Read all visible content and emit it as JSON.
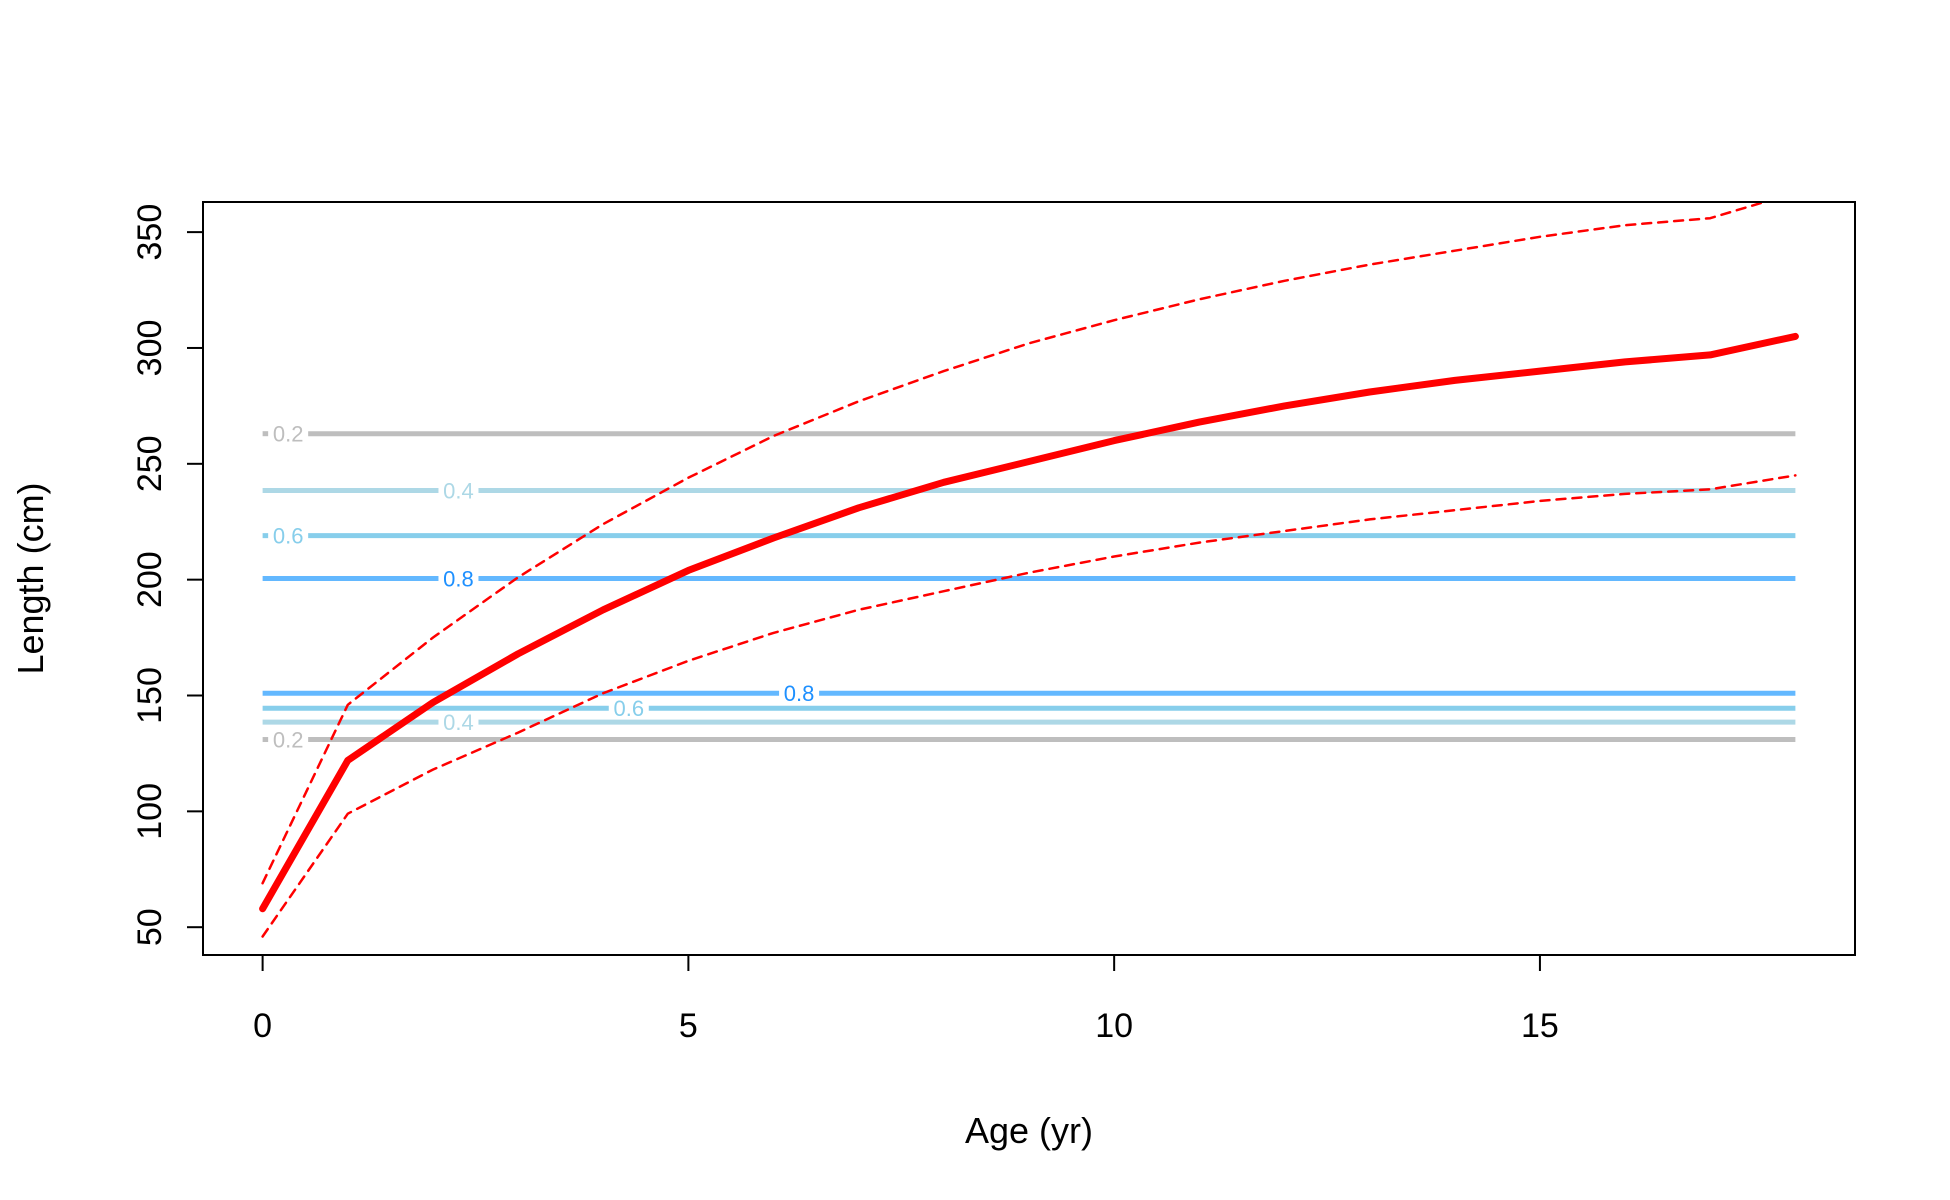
{
  "chart_data": {
    "type": "line",
    "xlabel": "Age (yr)",
    "ylabel": "Length (cm)",
    "xlim": [
      -0.7,
      18.7
    ],
    "ylim": [
      38,
      363
    ],
    "x_ticks": [
      0,
      5,
      10,
      15
    ],
    "y_ticks": [
      50,
      100,
      150,
      200,
      250,
      300,
      350
    ],
    "grid": false,
    "legend": "none",
    "series": [
      {
        "role": "mean",
        "style": "solid",
        "color": "#ff0000",
        "x": [
          0,
          1,
          2,
          3,
          4,
          5,
          6,
          7,
          8,
          9,
          10,
          11,
          12,
          13,
          14,
          15,
          16,
          17,
          18
        ],
        "values": [
          58,
          122,
          147,
          168,
          187,
          204,
          218,
          231,
          242,
          251,
          260,
          268,
          275,
          281,
          286,
          290,
          294,
          297,
          305
        ]
      },
      {
        "role": "upper",
        "style": "dashed",
        "color": "#ff0000",
        "x": [
          0,
          1,
          2,
          3,
          4,
          5,
          6,
          7,
          8,
          9,
          10,
          11,
          12,
          13,
          14,
          15,
          16,
          17,
          18
        ],
        "values": [
          69,
          146,
          175,
          201,
          224,
          244,
          262,
          277,
          290,
          302,
          312,
          321,
          329,
          336,
          342,
          348,
          353,
          356,
          367
        ]
      },
      {
        "role": "lower",
        "style": "dashed",
        "color": "#ff0000",
        "x": [
          0,
          1,
          2,
          3,
          4,
          5,
          6,
          7,
          8,
          9,
          10,
          11,
          12,
          13,
          14,
          15,
          16,
          17,
          18
        ],
        "values": [
          46,
          99,
          118,
          134,
          151,
          165,
          177,
          187,
          195,
          203,
          210,
          216,
          221,
          226,
          230,
          234,
          237,
          239,
          245
        ]
      }
    ],
    "reference_lines": [
      {
        "y": 263,
        "label": "0.2",
        "color": "#bebebe",
        "text_color": "#bebebe",
        "label_x": 0.3
      },
      {
        "y": 238.5,
        "label": "0.4",
        "color": "#add8e6",
        "text_color": "#add8e6",
        "label_x": 2.3
      },
      {
        "y": 219,
        "label": "0.6",
        "color": "#87ceeb",
        "text_color": "#87ceeb",
        "label_x": 0.3
      },
      {
        "y": 200.5,
        "label": "0.8",
        "color": "#63b8ff",
        "text_color": "#1e90ff",
        "label_x": 2.3
      },
      {
        "y": 151,
        "label": "0.8",
        "color": "#63b8ff",
        "text_color": "#1e90ff",
        "label_x": 6.3
      },
      {
        "y": 144.5,
        "label": "0.6",
        "color": "#87ceeb",
        "text_color": "#87ceeb",
        "label_x": 4.3
      },
      {
        "y": 138.5,
        "label": "0.4",
        "color": "#add8e6",
        "text_color": "#add8e6",
        "label_x": 2.3
      },
      {
        "y": 131,
        "label": "0.2",
        "color": "#bebebe",
        "text_color": "#bebebe",
        "label_x": 0.3
      }
    ]
  }
}
